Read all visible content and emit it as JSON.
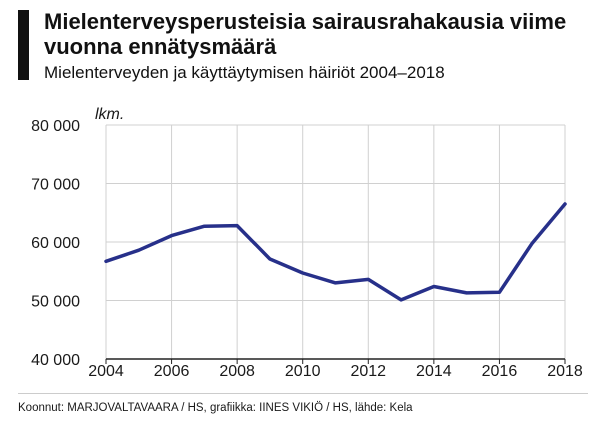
{
  "header": {
    "title": "Mielenterveysperusteisia sairausrahakausia viime vuonna ennätysmäärä",
    "subtitle": "Mielenterveyden ja käyttäytymisen häiriöt 2004–2018"
  },
  "footer": {
    "source": "Koonnut: MARJOVALTAVAARA / HS, grafiikka: IINES VIKIÖ / HS, lähde: Kela"
  },
  "chart_data": {
    "type": "line",
    "title": "Mielenterveysperusteisia sairausrahakausia viime vuonna ennätysmäärä",
    "subtitle": "Mielenterveyden ja käyttäytymisen häiriöt 2004–2018",
    "ylabel": "lkm.",
    "xlabel": "",
    "x": [
      2004,
      2005,
      2006,
      2007,
      2008,
      2009,
      2010,
      2011,
      2012,
      2013,
      2014,
      2015,
      2016,
      2017,
      2018
    ],
    "series": [
      {
        "values": [
          56700,
          58600,
          61100,
          62700,
          62800,
          57100,
          54700,
          53000,
          53600,
          50100,
          52400,
          51300,
          51400,
          59800,
          66500
        ]
      }
    ],
    "xlim": [
      2004,
      2018
    ],
    "ylim": [
      40000,
      80000
    ],
    "xticks": [
      2004,
      2006,
      2008,
      2010,
      2012,
      2014,
      2016,
      2018
    ],
    "xtick_labels": [
      "2004",
      "2006",
      "2008",
      "2010",
      "2012",
      "2014",
      "2016",
      "2018"
    ],
    "yticks": [
      40000,
      50000,
      60000,
      70000,
      80000
    ],
    "ytick_labels": [
      "40 000",
      "50 000",
      "60 000",
      "70 000",
      "80 000"
    ],
    "grid": true,
    "colors": {
      "line": "#27308a",
      "grid": "#d0d0d0",
      "axis": "#222222"
    }
  }
}
